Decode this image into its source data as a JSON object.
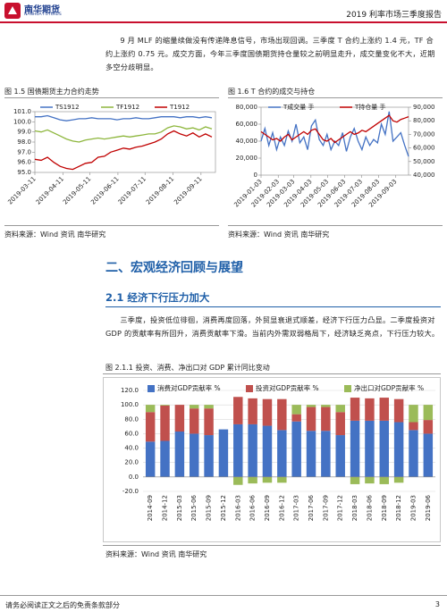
{
  "header": {
    "logo_cn": "南华期货",
    "logo_en": "NANHUA FUTURES",
    "report_title": "2019 利率市场三季度报告"
  },
  "paragraphs": [
    "9 月 MLF 的缩量续做没有传递降息信号，市场出现回调。三季度 T 合约上涨约 1.4 元，TF 合约上涨约 0.75 元。成交方面，今年三季度国债期货持仓量较之前明显走升，成交量变化不大，近期多空分歧明显。",
    "三季度，投资低位徘徊，消费再度回落，外贸显衰退式顺差，经济下行压力凸显。二季度投资对 GDP 的贡献率有所回升，消费贡献率下滑。当前内外需双弱格局下，经济缺乏亮点，下行压力较大。"
  ],
  "section": {
    "title": "二、宏观经济回顾与展望",
    "subtitle": "2.1 经济下行压力加大"
  },
  "footer": {
    "disclaimer": "请务必阅读正文之后的免责条款部分",
    "page": 3
  },
  "chart_data": [
    {
      "type": "line",
      "title": "图 1.5 国债期货主力合约走势",
      "source": "资料来源：Wind 资讯   南华研究",
      "x": [
        "2019-03-11",
        "2019-03-18",
        "2019-03-25",
        "2019-04-01",
        "2019-04-08",
        "2019-04-15",
        "2019-04-22",
        "2019-04-29",
        "2019-05-06",
        "2019-05-13",
        "2019-05-20",
        "2019-05-27",
        "2019-06-03",
        "2019-06-10",
        "2019-06-17",
        "2019-06-24",
        "2019-07-01",
        "2019-07-08",
        "2019-07-15",
        "2019-07-22",
        "2019-07-29",
        "2019-08-05",
        "2019-08-12",
        "2019-08-19",
        "2019-08-26",
        "2019-09-02",
        "2019-09-09",
        "2019-09-16",
        "2019-09-23"
      ],
      "xlim": [
        "2019-03-11",
        "2019-09-27"
      ],
      "xticks": [
        "2019-03-11",
        "2019-04-11",
        "2019-05-11",
        "2019-06-11",
        "2019-07-11",
        "2019-08-11",
        "2019-09-11"
      ],
      "ylim": [
        95,
        101
      ],
      "yticks": [
        {
          "value": 95,
          "label": "95.0"
        },
        {
          "value": 96,
          "label": "96.0"
        },
        {
          "value": 97,
          "label": "97.0"
        },
        {
          "value": 98,
          "label": "98.0"
        },
        {
          "value": 99,
          "label": "99.0"
        },
        {
          "value": 100,
          "label": "100.0"
        },
        {
          "value": 101,
          "label": "101.0"
        }
      ],
      "series": [
        {
          "name": "TS1912",
          "color": "#4472c4",
          "values": [
            100.5,
            100.5,
            100.6,
            100.4,
            100.2,
            100.1,
            100.2,
            100.3,
            100.3,
            100.4,
            100.3,
            100.3,
            100.3,
            100.2,
            100.3,
            100.3,
            100.4,
            100.3,
            100.3,
            100.4,
            100.5,
            100.5,
            100.5,
            100.4,
            100.5,
            100.5,
            100.4,
            100.5,
            100.4
          ]
        },
        {
          "name": "TF1912",
          "color": "#8db63c",
          "values": [
            99.1,
            99.0,
            99.2,
            98.9,
            98.6,
            98.3,
            98.1,
            98.0,
            98.2,
            98.3,
            98.4,
            98.3,
            98.4,
            98.5,
            98.6,
            98.5,
            98.6,
            98.7,
            98.8,
            98.8,
            99.0,
            99.4,
            99.6,
            99.5,
            99.3,
            99.4,
            99.2,
            99.5,
            99.3
          ]
        },
        {
          "name": "T1912",
          "color": "#c00000",
          "values": [
            96.3,
            96.2,
            96.5,
            96.0,
            95.6,
            95.4,
            95.3,
            95.6,
            95.9,
            96.0,
            96.5,
            96.6,
            97.0,
            97.2,
            97.4,
            97.3,
            97.5,
            97.6,
            97.8,
            98.0,
            98.3,
            98.8,
            99.1,
            98.8,
            98.6,
            98.9,
            98.5,
            98.8,
            98.5
          ]
        }
      ]
    },
    {
      "type": "line",
      "title": "图 1.6 T 合约的成交与持仓",
      "source": "资料来源：Wind 资讯   南华研究",
      "x": [
        "2019-01-03",
        "2019-01-10",
        "2019-01-17",
        "2019-01-24",
        "2019-01-31",
        "2019-02-07",
        "2019-02-14",
        "2019-02-21",
        "2019-02-28",
        "2019-03-07",
        "2019-03-14",
        "2019-03-21",
        "2019-03-28",
        "2019-04-04",
        "2019-04-11",
        "2019-04-18",
        "2019-04-25",
        "2019-05-02",
        "2019-05-09",
        "2019-05-16",
        "2019-05-23",
        "2019-05-30",
        "2019-06-06",
        "2019-06-13",
        "2019-06-20",
        "2019-06-27",
        "2019-07-04",
        "2019-07-11",
        "2019-07-18",
        "2019-07-25",
        "2019-08-01",
        "2019-08-08",
        "2019-08-15",
        "2019-08-22",
        "2019-08-29",
        "2019-09-05",
        "2019-09-12",
        "2019-09-19",
        "2019-09-26"
      ],
      "xlim": [
        "2019-01-03",
        "2019-09-26"
      ],
      "xticks": [
        "2019-01-03",
        "2019-02-03",
        "2019-03-03",
        "2019-04-03",
        "2019-05-03",
        "2019-06-03",
        "2019-07-03",
        "2019-08-03",
        "2019-09-03"
      ],
      "ylim": [
        0,
        80000
      ],
      "yticks": [
        0,
        {
          "value": 20000,
          "label": "20,000"
        },
        {
          "value": 40000,
          "label": "40,000"
        },
        {
          "value": 60000,
          "label": "60,000"
        },
        {
          "value": 80000,
          "label": "80,000"
        }
      ],
      "y2lim": [
        40000,
        90000
      ],
      "y2ticks": [
        {
          "value": 40000,
          "label": "40,000"
        },
        {
          "value": 50000,
          "label": "50,000"
        },
        {
          "value": 60000,
          "label": "60,000"
        },
        {
          "value": 70000,
          "label": "70,000"
        },
        {
          "value": 80000,
          "label": "80,000"
        },
        {
          "value": 90000,
          "label": "90,000"
        }
      ],
      "series": [
        {
          "name": "T成交量 手",
          "color": "#4472c4",
          "values": [
            40000,
            55000,
            35000,
            50000,
            30000,
            45000,
            35000,
            52000,
            40000,
            60000,
            38000,
            45000,
            30000,
            58000,
            65000,
            42000,
            35000,
            48000,
            30000,
            40000,
            35000,
            50000,
            28000,
            45000,
            55000,
            40000,
            30000,
            45000,
            35000,
            42000,
            38000,
            60000,
            48000,
            75000,
            40000,
            45000,
            50000,
            35000,
            22000
          ]
        },
        {
          "name": "T持仓量 手",
          "color": "#c00000",
          "axis": "y2",
          "values": [
            72000,
            70000,
            68000,
            66000,
            67000,
            65000,
            68000,
            70000,
            66000,
            68000,
            70000,
            72000,
            70000,
            73000,
            74000,
            70000,
            66000,
            65000,
            67000,
            64000,
            66000,
            68000,
            70000,
            72000,
            70000,
            71000,
            73000,
            72000,
            74000,
            76000,
            78000,
            80000,
            82000,
            84000,
            80000,
            79000,
            81000,
            82000,
            83000
          ]
        }
      ]
    },
    {
      "type": "stacked_bar",
      "title": "图 2.1.1 投资、消费、净出口对 GDP 累计同比变动",
      "source": "资料来源：Wind 资讯  南华研究",
      "categories": [
        "2014-09",
        "2014-12",
        "2015-03",
        "2015-06",
        "2015-09",
        "2015-12",
        "2016-03",
        "2016-06",
        "2016-09",
        "2016-12",
        "2017-03",
        "2017-06",
        "2017-09",
        "2017-12",
        "2018-03",
        "2018-06",
        "2018-09",
        "2018-12",
        "2019-03",
        "2019-06"
      ],
      "ylim": [
        -20,
        120
      ],
      "yticks": [
        {
          "value": -20,
          "label": "-20.0"
        },
        {
          "value": 0,
          "label": "0.0"
        },
        {
          "value": 20,
          "label": "20.0"
        },
        {
          "value": 40,
          "label": "40.0"
        },
        {
          "value": 60,
          "label": "60.0"
        },
        {
          "value": 80,
          "label": "80.0"
        },
        {
          "value": 100,
          "label": "100.0"
        },
        {
          "value": 120,
          "label": "120.0"
        }
      ],
      "grid": true,
      "series": [
        {
          "name": "消费对GDP贡献率 %",
          "color": "#4472c4",
          "values": [
            49,
            50,
            63,
            60,
            58,
            66,
            73,
            73,
            71,
            65,
            77,
            64,
            64,
            58,
            78,
            78,
            78,
            76,
            65,
            60
          ]
        },
        {
          "name": "投资对GDP贡献率 %",
          "color": "#c0504d",
          "values": [
            41,
            49,
            37,
            35,
            37,
            0,
            38,
            36,
            37,
            43,
            10,
            33,
            33,
            32,
            32,
            31,
            32,
            32,
            11,
            19
          ]
        },
        {
          "name": "净出口对GDP贡献率 %",
          "color": "#9bbb59",
          "values": [
            10,
            1,
            0,
            5,
            5,
            0,
            -11,
            -9,
            -8,
            -8,
            13,
            3,
            3,
            10,
            -10,
            -9,
            -10,
            -8,
            24,
            21
          ]
        }
      ]
    }
  ]
}
